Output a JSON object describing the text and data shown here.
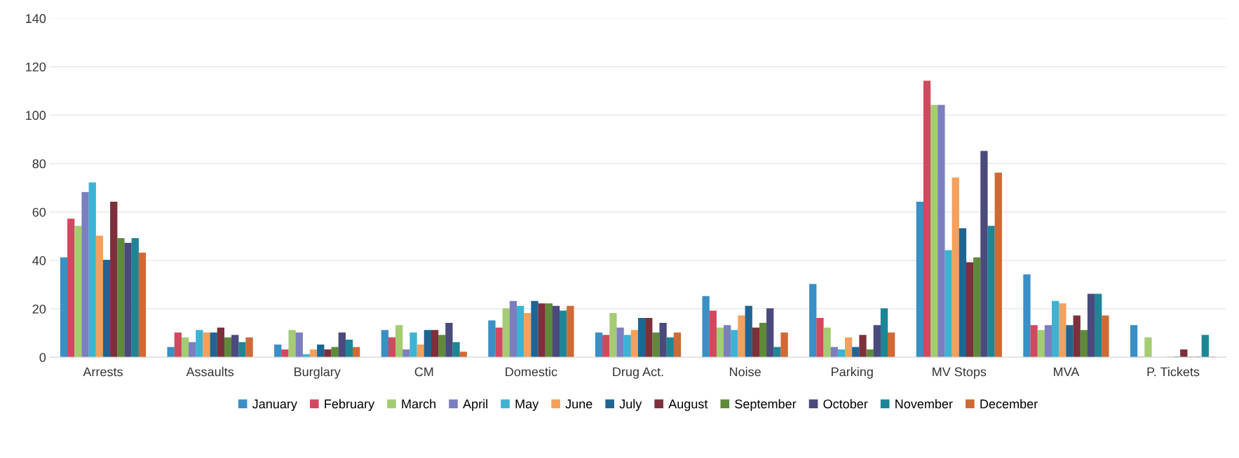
{
  "chart_data": {
    "type": "bar",
    "categories": [
      "Arrests",
      "Assaults",
      "Burglary",
      "CM",
      "Domestic",
      "Drug Act.",
      "Noise",
      "Parking",
      "MV Stops",
      "MVA",
      "P. Tickets"
    ],
    "series": [
      {
        "name": "January",
        "color": "#3a8fc6",
        "values": [
          41,
          4,
          5,
          11,
          15,
          10,
          25,
          30,
          64,
          34,
          13
        ]
      },
      {
        "name": "February",
        "color": "#d2485f",
        "values": [
          57,
          10,
          3,
          8,
          12,
          9,
          19,
          16,
          114,
          13,
          0
        ]
      },
      {
        "name": "March",
        "color": "#a5cc72",
        "values": [
          54,
          8,
          11,
          13,
          20,
          18,
          12,
          12,
          104,
          11,
          8
        ]
      },
      {
        "name": "April",
        "color": "#7b7fbf",
        "values": [
          68,
          6,
          10,
          3,
          23,
          12,
          13,
          4,
          104,
          13,
          null
        ]
      },
      {
        "name": "May",
        "color": "#3db3d4",
        "values": [
          72,
          11,
          1,
          10,
          21,
          9,
          11,
          3,
          44,
          23,
          null
        ]
      },
      {
        "name": "June",
        "color": "#f5a05c",
        "values": [
          50,
          10,
          3,
          5,
          18,
          11,
          17,
          8,
          74,
          22,
          0
        ]
      },
      {
        "name": "July",
        "color": "#1f6593",
        "values": [
          40,
          10,
          5,
          11,
          23,
          16,
          21,
          4,
          53,
          13,
          0
        ]
      },
      {
        "name": "August",
        "color": "#7d2f3c",
        "values": [
          64,
          12,
          3,
          11,
          22,
          16,
          12,
          9,
          39,
          17,
          3
        ]
      },
      {
        "name": "September",
        "color": "#5f8a3a",
        "values": [
          49,
          8,
          4,
          9,
          22,
          10,
          14,
          3,
          41,
          11,
          0
        ]
      },
      {
        "name": "October",
        "color": "#4a4a7c",
        "values": [
          47,
          9,
          10,
          14,
          21,
          14,
          20,
          13,
          85,
          26,
          0
        ]
      },
      {
        "name": "November",
        "color": "#1e8597",
        "values": [
          49,
          6,
          7,
          6,
          19,
          8,
          4,
          20,
          54,
          26,
          9
        ]
      },
      {
        "name": "December",
        "color": "#cf6a35",
        "values": [
          43,
          8,
          4,
          2,
          21,
          10,
          10,
          10,
          76,
          17,
          0
        ]
      }
    ],
    "ylim": [
      0,
      140
    ],
    "yticks": [
      0,
      20,
      40,
      60,
      80,
      100,
      120,
      140
    ],
    "grid": "y",
    "legend": "bottom"
  }
}
